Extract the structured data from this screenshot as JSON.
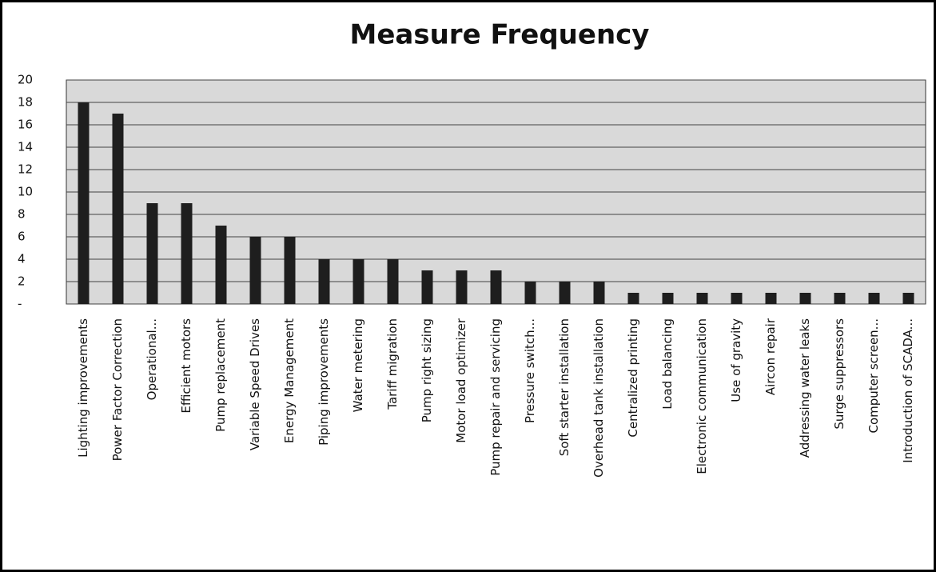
{
  "chart_data": {
    "type": "bar",
    "title": "Measure Frequency",
    "categories": [
      "Lighting improvements",
      "Power Factor Correction",
      "Operational...",
      "Efficient motors",
      "Pump replacement",
      "Variable Speed Drives",
      "Energy Management",
      "Piping improvements",
      "Water metering",
      "Tariff migration",
      "Pump right sizing",
      "Motor load optimizer",
      "Pump repair and servicing",
      "Pressure switch...",
      "Soft starter installation",
      "Overhead tank installation",
      "Centralized printing",
      "Load balancing",
      "Electronic communication",
      "Use of gravity",
      "Aircon repair",
      "Addressing water leaks",
      "Surge suppressors",
      "Computer screen...",
      "Introduction of SCADA..."
    ],
    "values": [
      18,
      17,
      9,
      9,
      7,
      6,
      6,
      4,
      4,
      4,
      3,
      3,
      3,
      2,
      2,
      2,
      1,
      1,
      1,
      1,
      1,
      1,
      1,
      1,
      1
    ],
    "color": "#1e1e1e",
    "ylim": [
      0,
      20
    ],
    "yticks": [
      {
        "value": 0,
        "label": "-"
      },
      2,
      4,
      6,
      8,
      10,
      12,
      14,
      16,
      18,
      20
    ],
    "grid": true
  }
}
